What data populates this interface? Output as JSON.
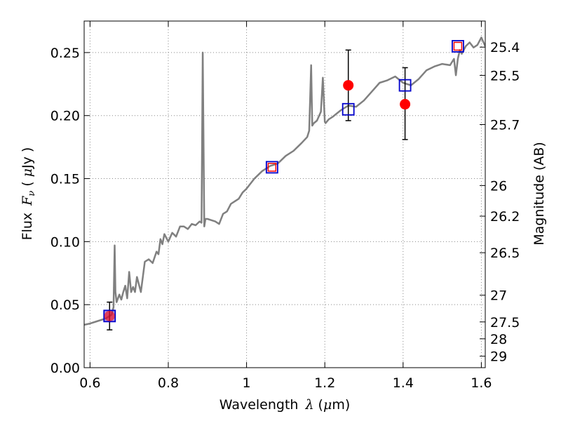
{
  "chart_data": {
    "type": "line",
    "title": "",
    "xlabel": "Wavelength",
    "xlabel_symbol": "λ",
    "xlabel_unit_open": " (",
    "xlabel_unit_mu": "μ",
    "xlabel_unit_close": "m)",
    "ylabel": "Flux",
    "ylabel_symbol_main": "F",
    "ylabel_symbol_sub": "ν",
    "ylabel_unit_open": "( ",
    "ylabel_unit_mu": "μ",
    "ylabel_unit_close": "Jy )",
    "y2label": "Magnitude (AB)",
    "xlim": [
      0.585,
      1.61
    ],
    "ylim": [
      0.0,
      0.275
    ],
    "grid": true,
    "x_ticks": [
      0.6,
      0.8,
      1.0,
      1.2,
      1.4,
      1.6
    ],
    "x_tick_labels": [
      "0.6",
      "0.8",
      "1",
      "1.2",
      "1.4",
      "1.6"
    ],
    "y_ticks": [
      0.0,
      0.05,
      0.1,
      0.15,
      0.2,
      0.25
    ],
    "y_tick_labels": [
      "0.00",
      "0.05",
      "0.10",
      "0.15",
      "0.20",
      "0.25"
    ],
    "y2_ticks": [
      {
        "label": "25.4",
        "flux": 0.2543
      },
      {
        "label": "25.5",
        "flux": 0.2319
      },
      {
        "label": "25.7",
        "flux": 0.1929
      },
      {
        "label": "26",
        "flux": 0.1445
      },
      {
        "label": "26.2",
        "flux": 0.1202
      },
      {
        "label": "26.5",
        "flux": 0.0912
      },
      {
        "label": "27",
        "flux": 0.0575
      },
      {
        "label": "27.5",
        "flux": 0.0363
      },
      {
        "label": "28",
        "flux": 0.0229
      },
      {
        "label": "29",
        "flux": 0.0091
      }
    ],
    "colors": {
      "spectrum": "#808080",
      "model_box": "#0000cc",
      "observed": "#ff0000",
      "box_fill_overlap": "#ff3333",
      "errorbar": "#000000",
      "grid": "#888888"
    },
    "series": [
      {
        "kind": "spectrum",
        "x": [
          0.585,
          0.6,
          0.62,
          0.64,
          0.655,
          0.66,
          0.663,
          0.665,
          0.668,
          0.675,
          0.68,
          0.685,
          0.69,
          0.695,
          0.7,
          0.705,
          0.71,
          0.715,
          0.72,
          0.73,
          0.74,
          0.75,
          0.76,
          0.77,
          0.775,
          0.78,
          0.785,
          0.79,
          0.8,
          0.81,
          0.82,
          0.83,
          0.84,
          0.85,
          0.86,
          0.87,
          0.88,
          0.885,
          0.888,
          0.892,
          0.895,
          0.9,
          0.91,
          0.92,
          0.93,
          0.94,
          0.95,
          0.96,
          0.97,
          0.98,
          0.99,
          1.0,
          1.02,
          1.04,
          1.06,
          1.08,
          1.1,
          1.12,
          1.14,
          1.155,
          1.16,
          1.165,
          1.168,
          1.172,
          1.18,
          1.19,
          1.195,
          1.2,
          1.202,
          1.21,
          1.22,
          1.24,
          1.26,
          1.28,
          1.3,
          1.32,
          1.34,
          1.36,
          1.38,
          1.4,
          1.42,
          1.44,
          1.46,
          1.48,
          1.5,
          1.52,
          1.53,
          1.535,
          1.54,
          1.545,
          1.55,
          1.56,
          1.57,
          1.58,
          1.59,
          1.6,
          1.61
        ],
        "y": [
          0.034,
          0.035,
          0.037,
          0.039,
          0.042,
          0.048,
          0.097,
          0.06,
          0.052,
          0.058,
          0.054,
          0.06,
          0.065,
          0.055,
          0.076,
          0.06,
          0.064,
          0.06,
          0.072,
          0.06,
          0.084,
          0.086,
          0.083,
          0.092,
          0.09,
          0.102,
          0.098,
          0.106,
          0.1,
          0.107,
          0.104,
          0.112,
          0.112,
          0.11,
          0.114,
          0.113,
          0.116,
          0.115,
          0.25,
          0.112,
          0.118,
          0.118,
          0.117,
          0.116,
          0.114,
          0.122,
          0.124,
          0.13,
          0.132,
          0.134,
          0.139,
          0.142,
          0.15,
          0.156,
          0.16,
          0.162,
          0.168,
          0.172,
          0.178,
          0.183,
          0.188,
          0.24,
          0.192,
          0.194,
          0.196,
          0.203,
          0.23,
          0.195,
          0.194,
          0.197,
          0.199,
          0.204,
          0.208,
          0.207,
          0.212,
          0.219,
          0.226,
          0.228,
          0.231,
          0.226,
          0.224,
          0.229,
          0.236,
          0.239,
          0.241,
          0.24,
          0.245,
          0.232,
          0.245,
          0.252,
          0.249,
          0.255,
          0.258,
          0.254,
          0.256,
          0.262,
          0.255
        ]
      },
      {
        "kind": "model-boxes",
        "x": [
          0.65,
          1.065,
          1.26,
          1.405,
          1.54
        ],
        "y": [
          0.041,
          0.159,
          0.205,
          0.224,
          0.255
        ]
      },
      {
        "kind": "observed",
        "x": [
          0.65,
          1.065,
          1.26,
          1.405,
          1.54
        ],
        "y": [
          0.041,
          0.159,
          0.224,
          0.209,
          0.255
        ],
        "yerr_low": [
          0.011,
          0.0,
          0.028,
          0.028,
          0.0
        ],
        "yerr_high": [
          0.011,
          0.0,
          0.028,
          0.029,
          0.0
        ],
        "marker": [
          "circle",
          "square",
          "circle",
          "circle",
          "square"
        ]
      }
    ]
  }
}
